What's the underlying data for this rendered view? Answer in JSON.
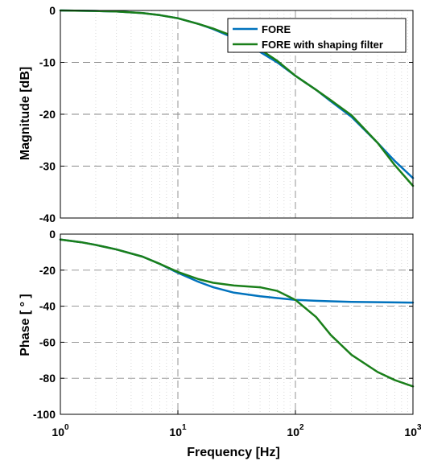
{
  "chart_data": [
    {
      "type": "line",
      "xscale": "log",
      "xlim": [
        1,
        1000
      ],
      "ylim": [
        -40,
        0
      ],
      "yticks": [
        0,
        -10,
        -20,
        -30,
        -40
      ],
      "ytick_labels": [
        "0",
        "-10",
        "-20",
        "-30",
        "-40"
      ],
      "ylabel": "Magnitude [dB]",
      "xlabel": "",
      "grid": true,
      "legend_position": "top-right",
      "series": [
        {
          "name": "FORE",
          "color": "#0072BD",
          "x": [
            1,
            2,
            3,
            5,
            7,
            10,
            15,
            20,
            30,
            50,
            70,
            100,
            150,
            200,
            300,
            500,
            700,
            1000
          ],
          "y": [
            0,
            -0.1,
            -0.2,
            -0.5,
            -0.9,
            -1.5,
            -2.6,
            -3.6,
            -5.3,
            -8.0,
            -10.0,
            -12.6,
            -15.3,
            -17.5,
            -20.5,
            -25.5,
            -29.0,
            -32.3
          ]
        },
        {
          "name": "FORE with shaping filter",
          "color": "#1A7F1A",
          "x": [
            1,
            2,
            3,
            5,
            7,
            10,
            15,
            20,
            30,
            50,
            70,
            100,
            150,
            200,
            300,
            500,
            700,
            1000
          ],
          "y": [
            0,
            -0.1,
            -0.2,
            -0.5,
            -0.9,
            -1.5,
            -2.6,
            -3.5,
            -5.0,
            -7.5,
            -9.7,
            -12.6,
            -15.3,
            -17.3,
            -20.2,
            -25.5,
            -29.8,
            -33.8
          ]
        }
      ]
    },
    {
      "type": "line",
      "xscale": "log",
      "xlim": [
        1,
        1000
      ],
      "ylim": [
        -100,
        0
      ],
      "yticks": [
        0,
        -20,
        -40,
        -60,
        -80,
        -100
      ],
      "ytick_labels": [
        "0",
        "-20",
        "-40",
        "-60",
        "-80",
        "-100"
      ],
      "xticks": [
        1,
        10,
        100,
        1000
      ],
      "xtick_labels": [
        {
          "base": "10",
          "exp": "0"
        },
        {
          "base": "10",
          "exp": "1"
        },
        {
          "base": "10",
          "exp": "2"
        },
        {
          "base": "10",
          "exp": "3"
        }
      ],
      "ylabel": "Phase [ ° ]",
      "xlabel": "Frequency [Hz]",
      "grid": true,
      "series": [
        {
          "name": "FORE",
          "color": "#0072BD",
          "x": [
            1,
            1.5,
            2,
            3,
            5,
            7,
            10,
            15,
            20,
            30,
            50,
            70,
            100,
            150,
            200,
            300,
            500,
            700,
            1000
          ],
          "y": [
            -3,
            -4.5,
            -6,
            -8.5,
            -12.5,
            -16.5,
            -21.5,
            -26.5,
            -29.5,
            -32.5,
            -34.5,
            -35.5,
            -36.5,
            -37,
            -37.3,
            -37.6,
            -37.8,
            -37.9,
            -38
          ]
        },
        {
          "name": "FORE with shaping filter",
          "color": "#1A7F1A",
          "x": [
            1,
            1.5,
            2,
            3,
            5,
            7,
            10,
            15,
            20,
            30,
            50,
            70,
            100,
            150,
            200,
            300,
            500,
            700,
            1000
          ],
          "y": [
            -3,
            -4.5,
            -6,
            -8.5,
            -12.5,
            -16.5,
            -21,
            -25,
            -27,
            -28.5,
            -29.5,
            -31.5,
            -36.5,
            -46,
            -56,
            -67,
            -76.5,
            -81,
            -84.5
          ]
        }
      ]
    }
  ]
}
